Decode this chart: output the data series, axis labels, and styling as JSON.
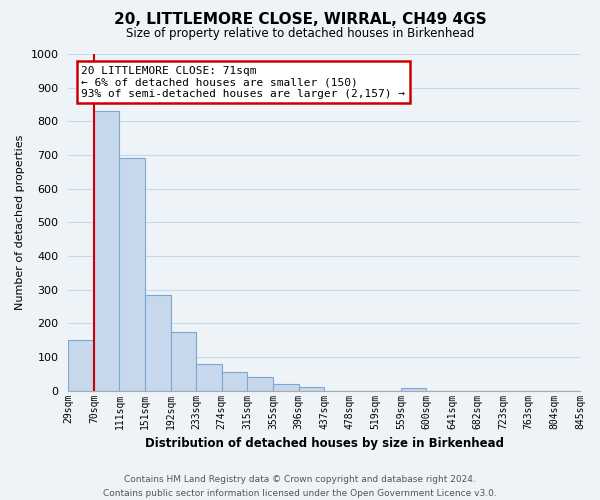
{
  "title": "20, LITTLEMORE CLOSE, WIRRAL, CH49 4GS",
  "subtitle": "Size of property relative to detached houses in Birkenhead",
  "bar_values": [
    150,
    830,
    690,
    285,
    175,
    80,
    55,
    42,
    20,
    10,
    0,
    0,
    0,
    8,
    0,
    0,
    0,
    0,
    0,
    0
  ],
  "x_labels": [
    "29sqm",
    "70sqm",
    "111sqm",
    "151sqm",
    "192sqm",
    "233sqm",
    "274sqm",
    "315sqm",
    "355sqm",
    "396sqm",
    "437sqm",
    "478sqm",
    "519sqm",
    "559sqm",
    "600sqm",
    "641sqm",
    "682sqm",
    "723sqm",
    "763sqm",
    "804sqm",
    "845sqm"
  ],
  "bar_color": "#c8d8ec",
  "bar_edge_color": "#7aa8d0",
  "vline_x": 1,
  "vline_color": "#cc0000",
  "annotation_box_text": "20 LITTLEMORE CLOSE: 71sqm\n← 6% of detached houses are smaller (150)\n93% of semi-detached houses are larger (2,157) →",
  "annotation_box_facecolor": "white",
  "annotation_box_edgecolor": "#cc0000",
  "ylabel": "Number of detached properties",
  "xlabel": "Distribution of detached houses by size in Birkenhead",
  "ylim": [
    0,
    1000
  ],
  "yticks": [
    0,
    100,
    200,
    300,
    400,
    500,
    600,
    700,
    800,
    900,
    1000
  ],
  "grid_color": "#c8d8ec",
  "background_color": "#eef3f8",
  "footer_line1": "Contains HM Land Registry data © Crown copyright and database right 2024.",
  "footer_line2": "Contains public sector information licensed under the Open Government Licence v3.0."
}
